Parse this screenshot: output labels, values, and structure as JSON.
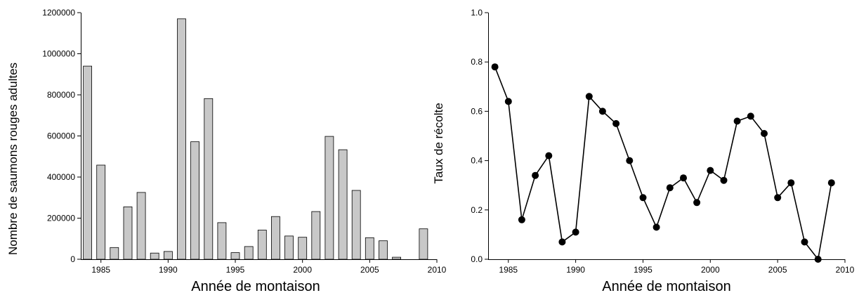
{
  "chart_data": [
    {
      "type": "bar",
      "xlabel": "Année de montaison",
      "ylabel": "Nombre de saumons rouges adultes",
      "xlim": [
        1983.5,
        2010
      ],
      "ylim": [
        0,
        1200000
      ],
      "xticks": [
        1985,
        1990,
        1995,
        2000,
        2005,
        2010
      ],
      "yticks": [
        0,
        200000,
        400000,
        600000,
        800000,
        1000000,
        1200000
      ],
      "x": [
        1984,
        1985,
        1986,
        1987,
        1988,
        1989,
        1990,
        1991,
        1992,
        1993,
        1994,
        1995,
        1996,
        1997,
        1998,
        1999,
        2000,
        2001,
        2002,
        2003,
        2004,
        2005,
        2006,
        2007,
        2008,
        2009
      ],
      "values": [
        940000,
        458000,
        57000,
        255000,
        325000,
        30000,
        38000,
        1170000,
        572000,
        782000,
        178000,
        32000,
        62000,
        142000,
        208000,
        113000,
        107000,
        232000,
        598000,
        533000,
        335000,
        105000,
        90000,
        10000,
        0,
        148000
      ],
      "grid": false,
      "colors": {
        "bar_fill": "#c8c8c8",
        "bar_stroke": "#000000"
      }
    },
    {
      "type": "line",
      "xlabel": "Année de montaison",
      "ylabel": "Taux de récolte",
      "xlim": [
        1983.5,
        2010
      ],
      "ylim": [
        0,
        1.0
      ],
      "xticks": [
        1985,
        1990,
        1995,
        2000,
        2005,
        2010
      ],
      "yticks": [
        "0.0",
        "0.2",
        "0.4",
        "0.6",
        "0.8",
        "1.0"
      ],
      "x": [
        1984,
        1985,
        1986,
        1987,
        1988,
        1989,
        1990,
        1991,
        1992,
        1993,
        1994,
        1995,
        1996,
        1997,
        1998,
        1999,
        2000,
        2001,
        2002,
        2003,
        2004,
        2005,
        2006,
        2007,
        2008,
        2009
      ],
      "values": [
        0.78,
        0.64,
        0.16,
        0.34,
        0.42,
        0.07,
        0.11,
        0.66,
        0.6,
        0.55,
        0.4,
        0.25,
        0.13,
        0.29,
        0.33,
        0.23,
        0.36,
        0.32,
        0.56,
        0.58,
        0.51,
        0.25,
        0.31,
        0.07,
        0.0,
        0.31
      ],
      "grid": false,
      "colors": {
        "line": "#000000",
        "marker": "#000000"
      }
    }
  ]
}
